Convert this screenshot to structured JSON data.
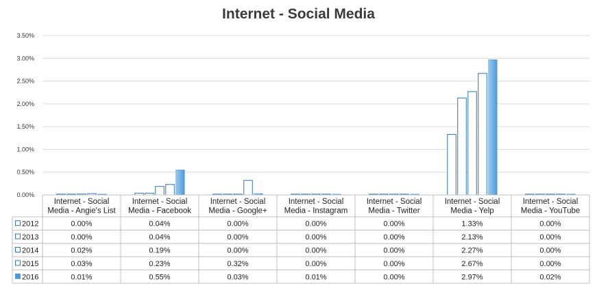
{
  "chart_data": {
    "type": "bar",
    "title": "Internet - Social Media",
    "xlabel": "",
    "ylabel": "",
    "ylim": [
      0,
      3.5
    ],
    "y_ticks": [
      "0.00%",
      "0.50%",
      "1.00%",
      "1.50%",
      "2.00%",
      "2.50%",
      "3.00%",
      "3.50%"
    ],
    "grid": true,
    "legend_placement": "data-table-left",
    "categories": [
      [
        "Internet - Social",
        "Media - Angie's List"
      ],
      [
        "Internet - Social",
        "Media - Facebook"
      ],
      [
        "Internet - Social",
        "Media - Google+"
      ],
      [
        "Internet - Social",
        "Media - Instagram"
      ],
      [
        "Internet - Social",
        "Media - Twitter"
      ],
      [
        "Internet - Social",
        "Media - Yelp"
      ],
      [
        "Internet - Social",
        "Media - YouTube"
      ]
    ],
    "series": [
      {
        "name": "2012",
        "style": "outline",
        "values": [
          0.0,
          0.04,
          0.0,
          0.0,
          0.0,
          1.33,
          0.0
        ],
        "labels": [
          "0.00%",
          "0.04%",
          "0.00%",
          "0.00%",
          "0.00%",
          "1.33%",
          "0.00%"
        ]
      },
      {
        "name": "2013",
        "style": "outline",
        "values": [
          0.0,
          0.04,
          0.0,
          0.0,
          0.0,
          2.13,
          0.0
        ],
        "labels": [
          "0.00%",
          "0.04%",
          "0.00%",
          "0.00%",
          "0.00%",
          "2.13%",
          "0.00%"
        ]
      },
      {
        "name": "2014",
        "style": "outline",
        "values": [
          0.02,
          0.19,
          0.0,
          0.0,
          0.0,
          2.27,
          0.0
        ],
        "labels": [
          "0.02%",
          "0.19%",
          "0.00%",
          "0.00%",
          "0.00%",
          "2.27%",
          "0.00%"
        ]
      },
      {
        "name": "2015",
        "style": "outline",
        "values": [
          0.03,
          0.23,
          0.32,
          0.0,
          0.0,
          2.67,
          0.0
        ],
        "labels": [
          "0.03%",
          "0.23%",
          "0.32%",
          "0.00%",
          "0.00%",
          "2.67%",
          "0.00%"
        ]
      },
      {
        "name": "2016",
        "style": "filled",
        "values": [
          0.01,
          0.55,
          0.03,
          0.01,
          0.0,
          2.97,
          0.02
        ],
        "labels": [
          "0.01%",
          "0.55%",
          "0.03%",
          "0.01%",
          "0.00%",
          "2.97%",
          "0.02%"
        ]
      }
    ],
    "colors": {
      "bar_outline": "#2e75b6",
      "bar_fill_light": "#9dc8ec",
      "bar_fill_dark": "#4f9bd8",
      "grid": "#d9d9d9",
      "table_border": "#bfbfbf"
    }
  }
}
